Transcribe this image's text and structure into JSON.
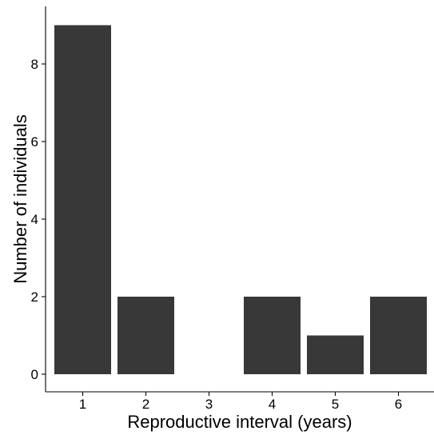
{
  "chart_data": {
    "type": "bar",
    "categories": [
      "1",
      "2",
      "3",
      "4",
      "5",
      "6"
    ],
    "values": [
      9,
      2,
      0,
      2,
      1,
      2
    ],
    "xlabel": "Reproductive interval (years)",
    "ylabel": "Number of individuals",
    "yticks": [
      "0",
      "2",
      "4",
      "6",
      "8"
    ],
    "ylim": [
      0,
      9.4
    ],
    "grid": false,
    "bar_color": "#383838"
  }
}
